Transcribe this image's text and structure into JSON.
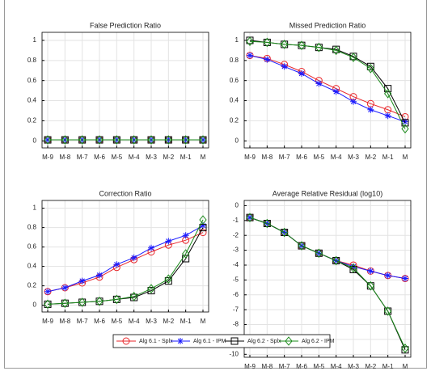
{
  "chart_data": [
    {
      "type": "line",
      "title": "False Prediction Ratio",
      "categories": [
        "M-9",
        "M-8",
        "M-7",
        "M-6",
        "M-5",
        "M-4",
        "M-3",
        "M-2",
        "M-1",
        "M"
      ],
      "ylim": [
        -0.07,
        1.08
      ],
      "yticks": [
        0,
        0.2,
        0.4,
        0.6,
        0.8,
        1
      ],
      "grid": true,
      "series": [
        {
          "values": [
            0.01,
            0.01,
            0.01,
            0.01,
            0.01,
            0.01,
            0.01,
            0.01,
            0.01,
            0.01
          ]
        },
        {
          "values": [
            0.01,
            0.01,
            0.01,
            0.01,
            0.01,
            0.01,
            0.01,
            0.01,
            0.01,
            0.01
          ]
        },
        {
          "values": [
            0.01,
            0.01,
            0.01,
            0.01,
            0.01,
            0.01,
            0.01,
            0.01,
            0.01,
            0.01
          ]
        },
        {
          "values": [
            0.01,
            0.01,
            0.01,
            0.01,
            0.01,
            0.01,
            0.01,
            0.01,
            0.01,
            0.01
          ]
        }
      ]
    },
    {
      "type": "line",
      "title": "Missed Prediction Ratio",
      "categories": [
        "M-9",
        "M-8",
        "M-7",
        "M-6",
        "M-5",
        "M-4",
        "M-3",
        "M-2",
        "M-1",
        "M"
      ],
      "ylim": [
        -0.07,
        1.08
      ],
      "yticks": [
        0,
        0.2,
        0.4,
        0.6,
        0.8,
        1
      ],
      "grid": true,
      "series": [
        {
          "values": [
            0.85,
            0.82,
            0.76,
            0.69,
            0.6,
            0.52,
            0.44,
            0.37,
            0.31,
            0.24
          ]
        },
        {
          "values": [
            0.85,
            0.81,
            0.74,
            0.67,
            0.57,
            0.49,
            0.39,
            0.31,
            0.25,
            0.19
          ]
        },
        {
          "values": [
            1.0,
            0.98,
            0.96,
            0.95,
            0.93,
            0.91,
            0.84,
            0.74,
            0.52,
            0.18
          ]
        },
        {
          "values": [
            0.99,
            0.98,
            0.96,
            0.95,
            0.93,
            0.9,
            0.83,
            0.72,
            0.47,
            0.12
          ]
        }
      ]
    },
    {
      "type": "line",
      "title": "Correction Ratio",
      "categories": [
        "M-9",
        "M-8",
        "M-7",
        "M-6",
        "M-5",
        "M-4",
        "M-3",
        "M-2",
        "M-1",
        "M"
      ],
      "ylim": [
        -0.07,
        1.08
      ],
      "yticks": [
        0,
        0.2,
        0.4,
        0.6,
        0.8,
        1
      ],
      "grid": true,
      "series": [
        {
          "values": [
            0.14,
            0.18,
            0.23,
            0.29,
            0.39,
            0.47,
            0.55,
            0.62,
            0.67,
            0.75
          ]
        },
        {
          "values": [
            0.14,
            0.18,
            0.25,
            0.31,
            0.42,
            0.49,
            0.59,
            0.66,
            0.72,
            0.82
          ]
        },
        {
          "values": [
            0.01,
            0.02,
            0.03,
            0.04,
            0.06,
            0.08,
            0.15,
            0.25,
            0.48,
            0.8
          ]
        },
        {
          "values": [
            0.01,
            0.02,
            0.03,
            0.04,
            0.06,
            0.09,
            0.17,
            0.27,
            0.53,
            0.88
          ]
        }
      ]
    },
    {
      "type": "line",
      "title": "Average Relative Residual (log10)",
      "categories": [
        "M-9",
        "M-8",
        "M-7",
        "M-6",
        "M-5",
        "M-4",
        "M-3",
        "M-2",
        "M-1",
        "M"
      ],
      "ylim": [
        -10.2,
        0.35
      ],
      "yticks": [
        -10,
        -9,
        -8,
        -7,
        -6,
        -5,
        -4,
        -3,
        -2,
        -1,
        0
      ],
      "grid": true,
      "series": [
        {
          "values": [
            -0.8,
            -1.2,
            -1.8,
            -2.7,
            -3.2,
            -3.7,
            -4.0,
            -4.4,
            -4.7,
            -4.9
          ]
        },
        {
          "values": [
            -0.8,
            -1.2,
            -1.8,
            -2.7,
            -3.2,
            -3.7,
            -4.1,
            -4.4,
            -4.7,
            -4.9
          ]
        },
        {
          "values": [
            -0.8,
            -1.2,
            -1.8,
            -2.7,
            -3.2,
            -3.7,
            -4.3,
            -5.4,
            -7.1,
            -9.7
          ]
        },
        {
          "values": [
            -0.8,
            -1.2,
            -1.8,
            -2.7,
            -3.2,
            -3.7,
            -4.2,
            -5.4,
            -7.1,
            -9.6
          ]
        }
      ]
    }
  ],
  "legend": [
    {
      "name": "Alg 6.1 - Splx",
      "color": "#e8262a",
      "marker": "circle"
    },
    {
      "name": "Alg 6.1 - IPM",
      "color": "#1a1aff",
      "marker": "star"
    },
    {
      "name": "Alg 6.2 - Splx",
      "color": "#000000",
      "marker": "square"
    },
    {
      "name": "Alg 6.2 - IPM",
      "color": "#1a8a1a",
      "marker": "diamond"
    }
  ]
}
